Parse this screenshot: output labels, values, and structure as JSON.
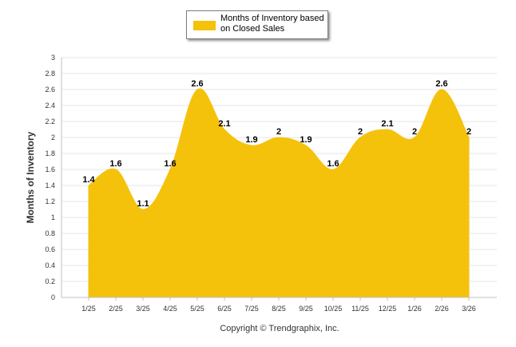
{
  "chart_data": {
    "type": "area",
    "categories": [
      "1/25",
      "2/25",
      "3/25",
      "4/25",
      "5/25",
      "6/25",
      "7/25",
      "8/25",
      "9/25",
      "10/25",
      "11/25",
      "12/25",
      "1/26",
      "2/26",
      "3/26"
    ],
    "series": [
      {
        "name": "Months of Inventory based on Closed Sales",
        "values": [
          1.4,
          1.6,
          1.1,
          1.6,
          2.6,
          2.1,
          1.9,
          2,
          1.9,
          1.6,
          2,
          2.1,
          2,
          2.6,
          2
        ]
      }
    ],
    "ylabel": "Months of Inventory",
    "xlabel": "",
    "ylim": [
      0,
      3
    ],
    "yticks": [
      "0",
      "0.2",
      "0.4",
      "0.6",
      "0.8",
      "1",
      "1.2",
      "1.4",
      "1.6",
      "1.8",
      "2",
      "2.2",
      "2.4",
      "2.6",
      "2.8",
      "3"
    ],
    "data_labels": [
      "1.4",
      "1.6",
      "1.1",
      "1.6",
      "2.6",
      "2.1",
      "1.9",
      "2",
      "1.9",
      "1.6",
      "2",
      "2.1",
      "2",
      "2.6",
      "2"
    ],
    "legend": {
      "position": "top-center",
      "label": "Months of Inventory based on Closed Sales"
    },
    "grid": true
  },
  "colors": {
    "series": "#F5C20B",
    "grid": "#e6e6e6",
    "axis": "#c0c0c0"
  },
  "footer": {
    "copyright": "Copyright © Trendgraphix, Inc."
  }
}
